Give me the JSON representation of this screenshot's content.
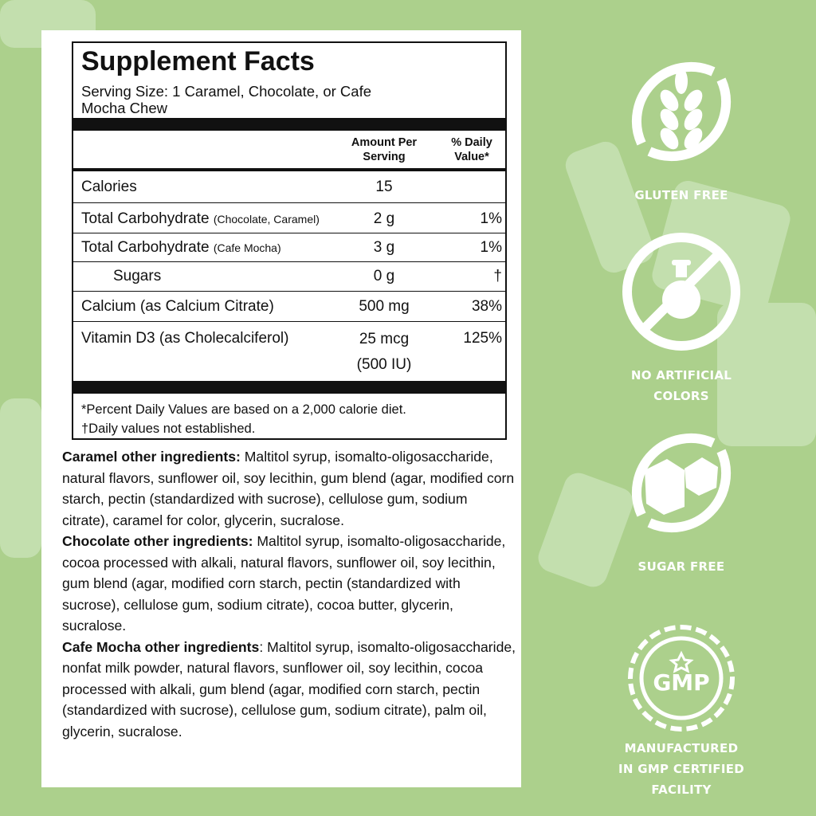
{
  "facts": {
    "title": "Supplement Facts",
    "serving": "Serving Size: 1 Caramel, Chocolate, or Cafe Mocha Chew",
    "header_amount": "Amount Per Serving",
    "header_dv": "% Daily Value*",
    "rows": [
      {
        "name": "Calories",
        "note": "",
        "amount": "15",
        "dv": ""
      },
      {
        "name": "Total Carbohydrate",
        "note": "(Chocolate, Caramel)",
        "amount": "2 g",
        "dv": "1%"
      },
      {
        "name": "Total Carbohydrate",
        "note": "(Cafe Mocha)",
        "amount": "3 g",
        "dv": "1%"
      },
      {
        "name": "Sugars",
        "note": "",
        "amount": "0 g",
        "dv": "†"
      },
      {
        "name": "Calcium (as Calcium Citrate)",
        "note": "",
        "amount": "500 mg",
        "dv": "38%"
      },
      {
        "name": "Vitamin D3 (as Cholecalciferol)",
        "note": "",
        "amount": "25 mcg",
        "amount2": "(500 IU)",
        "dv": "125%"
      }
    ],
    "footnote1": "*Percent Daily Values are based on a 2,000 calorie diet.",
    "footnote2": "†Daily values not established."
  },
  "ingredients": [
    {
      "label": "Caramel other ingredients:",
      "text": " Maltitol syrup, isomalto-oligosaccharide, natural flavors, sunflower oil, soy lecithin, gum blend (agar, modified corn starch, pectin (standardized with sucrose), cellulose gum, sodium citrate), caramel for color, glycerin, sucralose."
    },
    {
      "label": "Chocolate other ingredients:",
      "text": " Maltitol syrup, isomalto-oligosaccharide, cocoa processed with alkali, natural flavors, sunflower oil, soy lecithin, gum blend (agar, modified corn starch, pectin (standardized with sucrose), cellulose gum, sodium citrate), cocoa butter, glycerin, sucralose."
    },
    {
      "label": "Cafe Mocha other ingredients",
      "text": ": Maltitol syrup, isomalto-oligosaccharide, nonfat milk powder, natural flavors, sunflower oil, soy lecithin, cocoa processed with alkali, gum blend (agar, modified corn starch, pectin (standardized with sucrose), cellulose gum, sodium citrate), palm oil, glycerin, sucralose."
    }
  ],
  "badges": [
    {
      "icon": "wheat-crossed-icon",
      "label": "GLUTEN FREE"
    },
    {
      "icon": "flask-crossed-icon",
      "label": "NO ARTIFICIAL COLORS"
    },
    {
      "icon": "sugar-cubes-crossed-icon",
      "label": "SUGAR FREE"
    },
    {
      "icon": "gmp-seal-icon",
      "label": "MANUFACTURED IN GMP CERTIFIED FACILITY",
      "seal_text": "GMP"
    }
  ],
  "colors": {
    "background": "#acd08c",
    "background_light": "#c3dfae",
    "text": "#111111"
  }
}
